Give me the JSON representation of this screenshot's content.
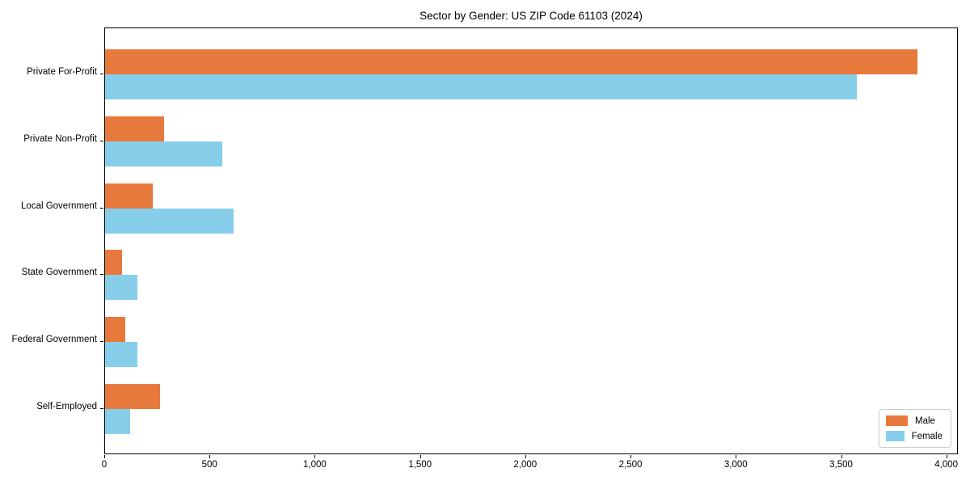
{
  "title": "Sector by Gender: US ZIP Code 61103 (2024)",
  "legend": {
    "position": "lower-right",
    "items": [
      {
        "label": "Male",
        "color": "#E8793C"
      },
      {
        "label": "Female",
        "color": "#87CEEB"
      }
    ]
  },
  "chart_data": {
    "type": "bar",
    "orientation": "horizontal",
    "title": "Sector by Gender: US ZIP Code 61103 (2024)",
    "categories": [
      "Private For-Profit",
      "Private Non-Profit",
      "Local Government",
      "State Government",
      "Federal Government",
      "Self-Employed"
    ],
    "series": [
      {
        "name": "Male",
        "color": "#E8793C",
        "values": [
          3860,
          280,
          225,
          80,
          95,
          260
        ]
      },
      {
        "name": "Female",
        "color": "#87CEEB",
        "values": [
          3570,
          555,
          610,
          155,
          155,
          120
        ]
      }
    ],
    "xlabel": "",
    "ylabel": "",
    "xlim": [
      0,
      4055
    ],
    "xticks": [
      0,
      500,
      1000,
      1500,
      2000,
      2500,
      3000,
      3500,
      4000
    ],
    "xtick_labels": [
      "0",
      "500",
      "1,000",
      "1,500",
      "2,000",
      "2,500",
      "3,000",
      "3,500",
      "4,000"
    ],
    "grid": false,
    "legend_position": "lower right"
  }
}
